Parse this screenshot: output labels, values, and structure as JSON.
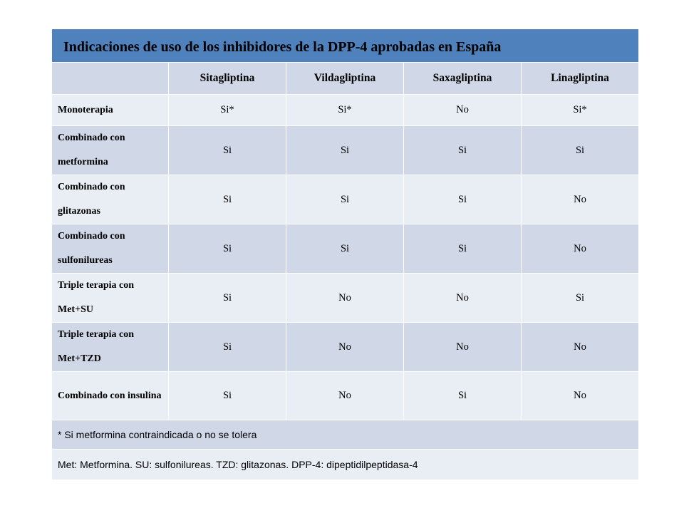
{
  "table": {
    "title": "Indicaciones de uso de los inhibidores de la DPP-4 aprobadas en España",
    "columns": [
      "",
      "Sitagliptina",
      "Vildagliptina",
      "Saxagliptina",
      "Linagliptina"
    ],
    "rows": [
      {
        "label": "Monoterapia",
        "values": [
          "Si*",
          "Si*",
          "No",
          "Si*"
        ]
      },
      {
        "label": "Combinado con metformina",
        "values": [
          "Si",
          "Si",
          "Si",
          "Si"
        ]
      },
      {
        "label": "Combinado con glitazonas",
        "values": [
          "Si",
          "Si",
          "Si",
          "No"
        ]
      },
      {
        "label": "Combinado con sulfonilureas",
        "values": [
          "Si",
          "Si",
          "Si",
          "No"
        ]
      },
      {
        "label": "Triple terapia con Met+SU",
        "values": [
          "Si",
          "No",
          "No",
          "Si"
        ]
      },
      {
        "label": "Triple terapia con Met+TZD",
        "values": [
          "Si",
          "No",
          "No",
          "No"
        ]
      },
      {
        "label": "Combinado con insulina",
        "values": [
          "Si",
          "No",
          "Si",
          "No"
        ]
      }
    ],
    "note": "* Si metformina contraindicada o no se tolera",
    "footnote": "Met: Metformina. SU: sulfonilureas. TZD: glitazonas. DPP-4: dipeptidilpeptidasa-4"
  }
}
